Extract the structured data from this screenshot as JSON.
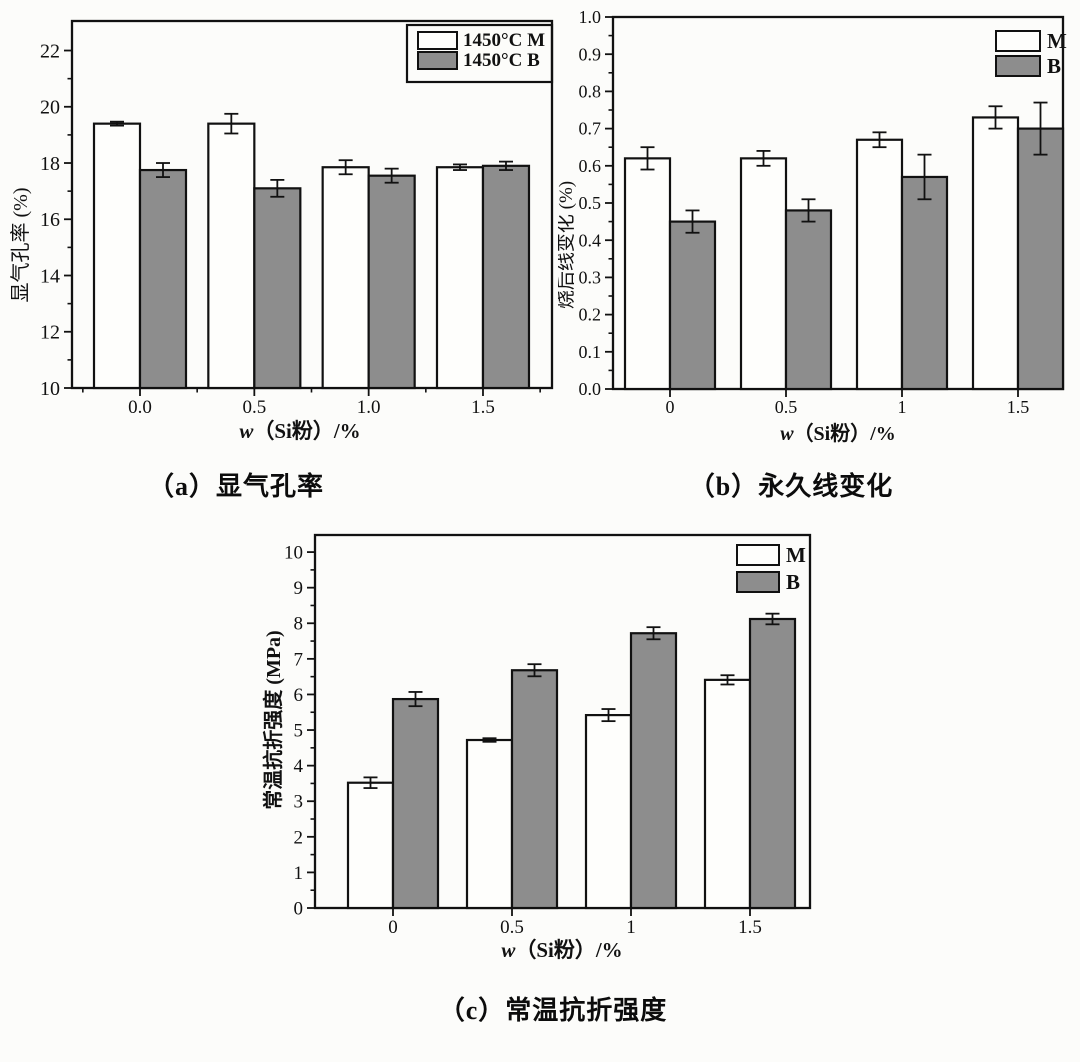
{
  "figure": {
    "background": "#fcfcfa"
  },
  "colors": {
    "stroke": "#111111",
    "text": "#111111",
    "m_fill": "#fefefc",
    "b_fill": "#8d8d8d"
  },
  "chart_data": [
    {
      "type": "bar",
      "panel": "a",
      "caption": "（a）显气孔率",
      "xlabel": "w（Si粉）/%",
      "ylabel": "显气孔率 (%)",
      "categories": [
        "0.0",
        "0.5",
        "1.0",
        "1.5"
      ],
      "series": [
        {
          "name": "1450°C M",
          "fill": "#fefefc",
          "values": [
            19.4,
            19.4,
            17.85,
            17.85
          ],
          "errors": [
            0.07,
            0.35,
            0.25,
            0.1
          ]
        },
        {
          "name": "1450°C B",
          "fill": "#8d8d8d",
          "values": [
            17.75,
            17.1,
            17.55,
            17.9
          ],
          "errors": [
            0.25,
            0.3,
            0.25,
            0.15
          ]
        }
      ],
      "ylim": [
        10,
        22
      ],
      "yticks": [
        10,
        12,
        14,
        16,
        18,
        20,
        22
      ],
      "ytick_labels": [
        "10",
        "12",
        "14",
        "16",
        "18",
        "20",
        "22"
      ],
      "legend_position": "top-right",
      "legend_boxed": true,
      "grid": false
    },
    {
      "type": "bar",
      "panel": "b",
      "caption": "（b）永久线变化",
      "xlabel": "w（Si粉）/%",
      "ylabel": "烧后线变化 (%)",
      "categories": [
        "0",
        "0.5",
        "1",
        "1.5"
      ],
      "series": [
        {
          "name": "M",
          "fill": "#fefefc",
          "values": [
            0.62,
            0.62,
            0.67,
            0.73
          ],
          "errors": [
            0.03,
            0.02,
            0.02,
            0.03
          ]
        },
        {
          "name": "B",
          "fill": "#8d8d8d",
          "values": [
            0.45,
            0.48,
            0.57,
            0.7
          ],
          "errors": [
            0.03,
            0.03,
            0.06,
            0.07
          ]
        }
      ],
      "ylim": [
        0,
        1.0
      ],
      "yticks": [
        0,
        0.1,
        0.2,
        0.3,
        0.4,
        0.5,
        0.6,
        0.7,
        0.8,
        0.9,
        1.0
      ],
      "ytick_labels": [
        "0.0",
        "0.1",
        "0.2",
        "0.3",
        "0.4",
        "0.5",
        "0.6",
        "0.7",
        "0.8",
        "0.9",
        "1.0"
      ],
      "legend_position": "top-right",
      "legend_boxed": false,
      "grid": false
    },
    {
      "type": "bar",
      "panel": "c",
      "caption": "（c）常温抗折强度",
      "xlabel": "w（Si粉）/%",
      "ylabel": "常温抗折强度 (MPa)",
      "categories": [
        "0",
        "0.5",
        "1",
        "1.5"
      ],
      "series": [
        {
          "name": "M",
          "fill": "#fefefc",
          "values": [
            3.52,
            4.72,
            5.42,
            6.41
          ],
          "errors": [
            0.15,
            0.05,
            0.17,
            0.13
          ]
        },
        {
          "name": "B",
          "fill": "#8d8d8d",
          "values": [
            5.87,
            6.68,
            7.72,
            8.12
          ],
          "errors": [
            0.2,
            0.17,
            0.17,
            0.15
          ]
        }
      ],
      "ylim": [
        0,
        10
      ],
      "yticks": [
        0,
        1,
        2,
        3,
        4,
        5,
        6,
        7,
        8,
        9,
        10
      ],
      "ytick_labels": [
        "0",
        "1",
        "2",
        "3",
        "4",
        "5",
        "6",
        "7",
        "8",
        "9",
        "10"
      ],
      "legend_position": "top-right",
      "legend_boxed": false,
      "grid": false
    }
  ]
}
